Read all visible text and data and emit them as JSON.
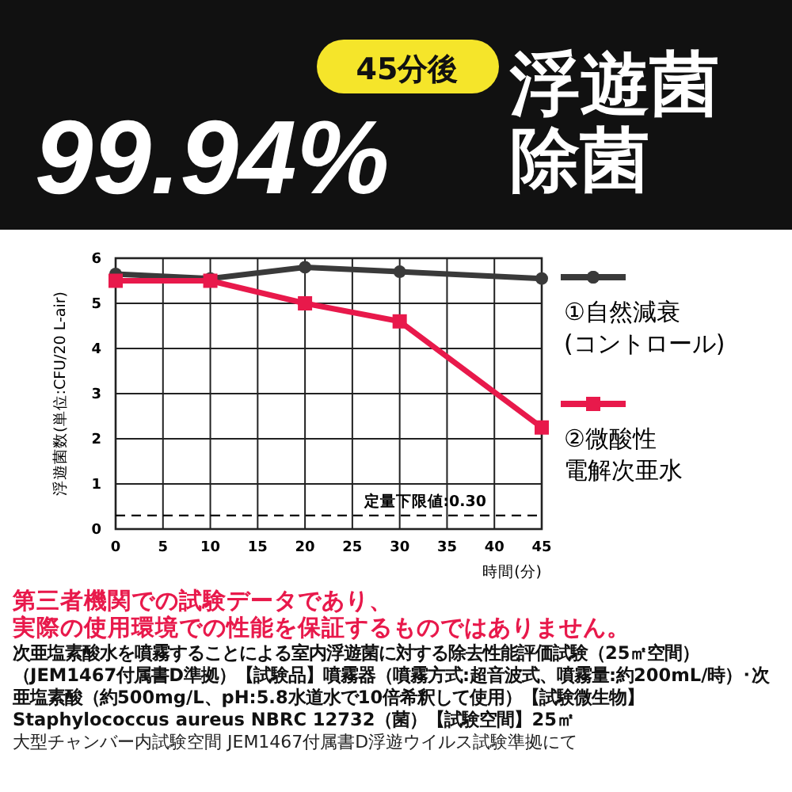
{
  "chart_data": {
    "type": "line",
    "title": "99.94%",
    "annotations": [
      "45分後",
      "浮遊菌",
      "除菌",
      "第三者機関での試験データであり、",
      "実際の使用環境での性能を保証するものではありません。",
      "次亜塩素酸水を噴霧することによる室内浮遊菌に対する除去性能評価試験（25㎡空間）（JEM1467付属書D準拠）【試験品】噴霧器（噴霧方式:超音波式、噴霧量:約200mL/時）･次亜塩素酸（約500mg/L、pH:5.8水道水で10倍希釈して使用）【試験微生物】Staphylococcus aureus NBRC 12732（菌）【試験空間】25㎡",
      "大型チャンバー内試験空間 JEM1467付属書D浮遊ウイルス試験準拠にて"
    ],
    "xlabel": "時間(分)",
    "ylabel": "浮遊菌数(単位:CFU/20 L-air)",
    "x": [
      0,
      10,
      20,
      30,
      45
    ],
    "series": [
      {
        "name": "①自然減衰(コントロール)",
        "color": "#3a3a3a",
        "marker": "circle",
        "values": [
          5.65,
          5.55,
          5.8,
          5.7,
          5.55
        ]
      },
      {
        "name": "②微酸性電解次亜水",
        "color": "#e8194b",
        "marker": "square",
        "values": [
          5.5,
          5.5,
          5.0,
          4.6,
          2.25
        ]
      }
    ],
    "xlim": [
      0,
      45
    ],
    "xticks": [
      0,
      5,
      10,
      15,
      20,
      25,
      30,
      35,
      40,
      45
    ],
    "ylim": [
      0,
      6
    ],
    "yticks": [
      0,
      1,
      2,
      3,
      4,
      5,
      6
    ],
    "ref_lines": [
      {
        "axis": "y",
        "value": 0.3,
        "label": "定量下限値:0.30",
        "color": "#000000",
        "line_style": "dashed"
      }
    ],
    "grid": true,
    "legend": "right",
    "line_style": "solid"
  }
}
